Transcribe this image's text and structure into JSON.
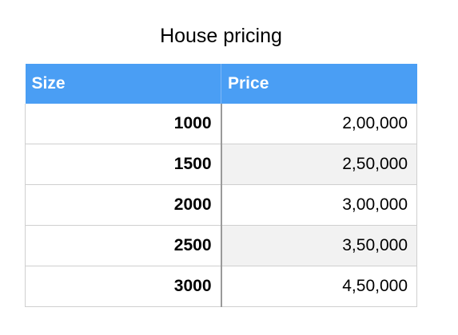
{
  "title": "House pricing",
  "columns": [
    "Size",
    "Price"
  ],
  "rows": [
    {
      "size": "1000",
      "price": "2,00,000"
    },
    {
      "size": "1500",
      "price": "2,50,000"
    },
    {
      "size": "2000",
      "price": "3,00,000"
    },
    {
      "size": "2500",
      "price": "3,50,000"
    },
    {
      "size": "3000",
      "price": "4,50,000"
    }
  ],
  "colors": {
    "header_bg": "#4a9ef4",
    "header_text": "#ffffff",
    "alt_row_bg": "#f2f2f2"
  }
}
